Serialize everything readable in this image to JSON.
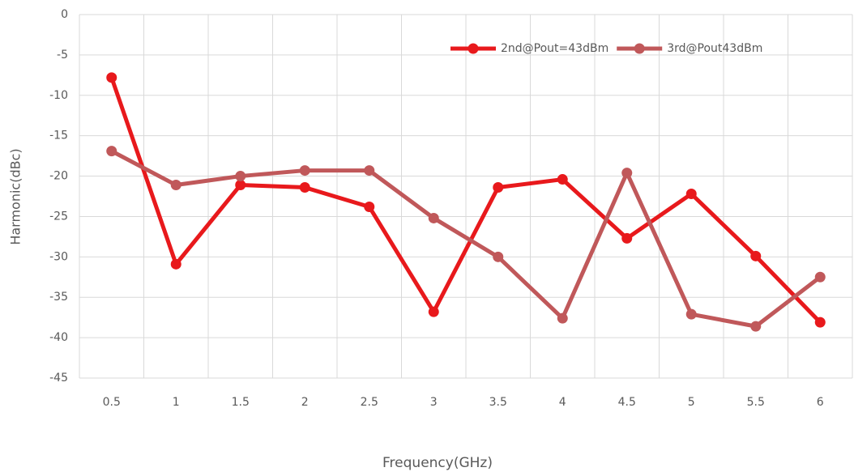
{
  "chart_data": {
    "type": "line",
    "x_label": "Frequency(GHz)",
    "y_label": "Harmonic(dBc)",
    "categories": [
      "0.5",
      "1",
      "1.5",
      "2",
      "2.5",
      "3",
      "3.5",
      "4",
      "4.5",
      "5",
      "5.5",
      "6"
    ],
    "series": [
      {
        "name": "2nd@Pout=43dBm",
        "color": "#e8191c",
        "values": [
          -7.8,
          -30.9,
          -21.1,
          -21.4,
          -23.8,
          -36.8,
          -21.4,
          -20.4,
          -27.7,
          -22.2,
          -29.9,
          -38.1
        ]
      },
      {
        "name": "3rd@Pout43dBm",
        "color": "#c0585a",
        "values": [
          -16.9,
          -21.1,
          -20.0,
          -19.3,
          -19.3,
          -25.2,
          -30.0,
          -37.6,
          -19.6,
          -37.1,
          -38.6,
          -32.5
        ]
      }
    ],
    "ylim": [
      -45,
      0
    ],
    "yticks": [
      0,
      -5,
      -10,
      -15,
      -20,
      -25,
      -30,
      -35,
      -40,
      -45
    ],
    "grid": true,
    "legend": "top-right"
  }
}
